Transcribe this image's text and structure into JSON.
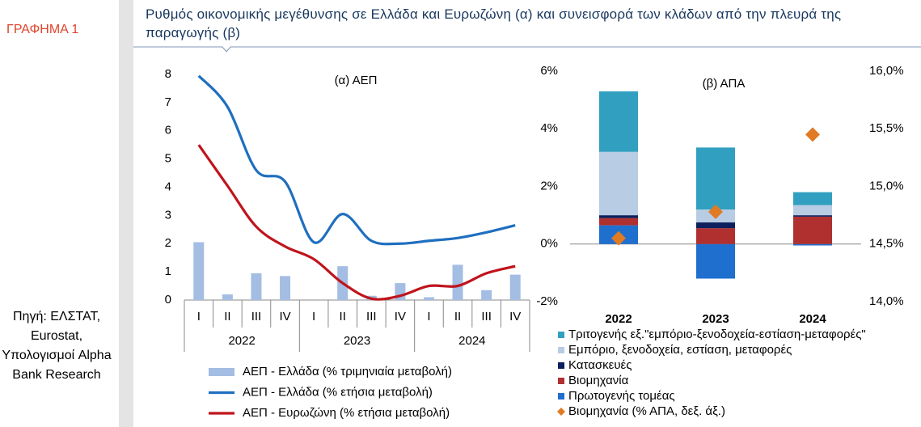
{
  "label": "ΓΡΑΦΗΜΑ 1",
  "source": "Πηγή: ΕΛΣΤΑΤ, Eurostat, Υπολογισμοί Alpha Bank Research",
  "title": "Ρυθμός οικονομικής μεγέθυνσης σε Ελλάδα και Ευρωζώνη (α) και συνεισφορά των κλάδων από την πλευρά της παραγωγής (β)",
  "chart_data": [
    {
      "type": "combo",
      "title": "(α) ΑΕΠ",
      "categories": [
        "I",
        "II",
        "III",
        "IV",
        "I",
        "II",
        "III",
        "IV",
        "I",
        "II",
        "III",
        "IV"
      ],
      "group_labels": [
        "2022",
        "2023",
        "2024"
      ],
      "ylim": [
        0,
        8
      ],
      "yticks": [
        0,
        1,
        2,
        3,
        4,
        5,
        6,
        7,
        8
      ],
      "grid": false,
      "series": [
        {
          "name": "ΑΕΠ - Ελλάδα (% τριμηνιαία μεταβολή)",
          "type": "bar",
          "color": "#a4bde3",
          "values": [
            2.05,
            0.2,
            0.95,
            0.85,
            0.0,
            1.2,
            0.15,
            0.6,
            0.1,
            1.25,
            0.35,
            0.9
          ]
        },
        {
          "name": "ΑΕΠ - Ελλάδα (% ετήσια μεταβολή)",
          "type": "line",
          "color": "#1f6fbf",
          "values": [
            7.95,
            6.85,
            4.6,
            4.2,
            2.05,
            3.05,
            2.1,
            2.0,
            2.1,
            2.2,
            2.4,
            2.65
          ]
        },
        {
          "name": "ΑΕΠ - Ευρωζώνη (% ετήσια μεταβολή)",
          "type": "line",
          "color": "#c0141c",
          "values": [
            5.5,
            4.05,
            2.6,
            1.9,
            1.45,
            0.6,
            0.05,
            0.15,
            0.5,
            0.5,
            0.95,
            1.2
          ]
        }
      ]
    },
    {
      "type": "stacked_bar",
      "title": "(β) ΑΠΑ",
      "categories": [
        "2022",
        "2023",
        "2024"
      ],
      "ylim": [
        -2,
        6
      ],
      "yticks": [
        {
          "value": -2,
          "label": "-2%"
        },
        {
          "value": 0,
          "label": "0%"
        },
        {
          "value": 2,
          "label": "2%"
        },
        {
          "value": 4,
          "label": "4%"
        },
        {
          "value": 6,
          "label": "6%"
        }
      ],
      "y2lim": [
        14.0,
        16.0
      ],
      "y2ticks": [
        {
          "value": 14.0,
          "label": "14,0%"
        },
        {
          "value": 14.5,
          "label": "14,5%"
        },
        {
          "value": 15.0,
          "label": "15,0%"
        },
        {
          "value": 15.5,
          "label": "15,5%"
        },
        {
          "value": 16.0,
          "label": "16,0%"
        }
      ],
      "grid": false,
      "series": [
        {
          "name": "Τριτογενής εξ.\"εμπόριο-ξενοδοχεία-εστίαση-μεταφορές\"",
          "type": "bar",
          "color": "#31a0c0",
          "values": [
            2.1,
            2.15,
            0.45
          ]
        },
        {
          "name": "Εμπόριο, ξενοδοχεία, εστίαση, μεταφορές",
          "type": "bar",
          "color": "#b8cce4",
          "values": [
            2.2,
            0.45,
            0.35
          ]
        },
        {
          "name": "Κατασκευές",
          "type": "bar",
          "color": "#0d1f5c",
          "values": [
            0.1,
            0.2,
            0.05
          ]
        },
        {
          "name": "Βιομηχανία",
          "type": "bar",
          "color": "#b03030",
          "values": [
            0.25,
            0.55,
            0.95
          ]
        },
        {
          "name": "Πρωτογενής τομέας",
          "type": "bar",
          "color": "#1f6fcf",
          "values": [
            0.65,
            -1.2,
            -0.05
          ]
        },
        {
          "name": "Βιομηχανία (% ΑΠΑ, δεξ. άξ.)",
          "type": "scatter",
          "axis": "y2",
          "color": "#e07b24",
          "values": [
            14.55,
            14.78,
            15.45
          ]
        }
      ]
    }
  ]
}
